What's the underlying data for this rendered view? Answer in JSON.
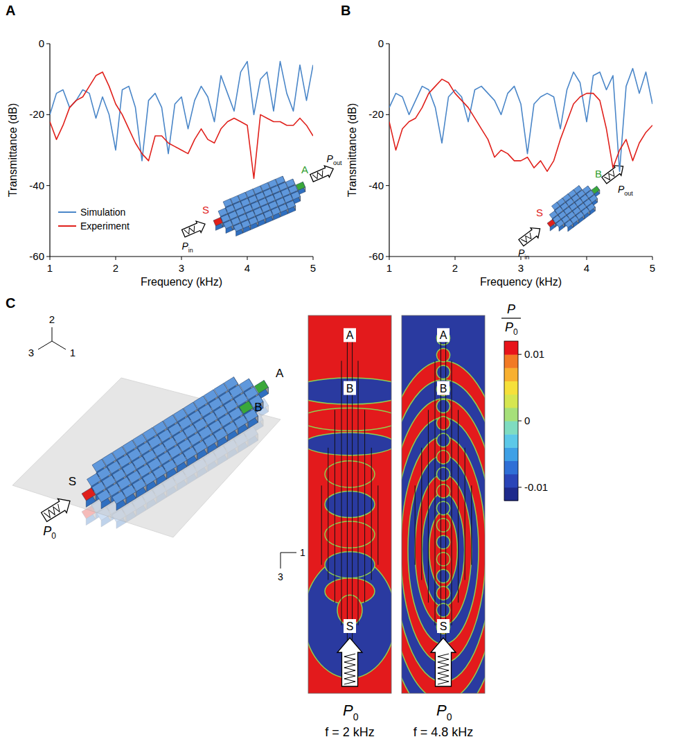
{
  "panel_labels": [
    "A",
    "B",
    "C"
  ],
  "chart_data": [
    {
      "type": "line",
      "x_label": "Frequency (kHz)",
      "y_label": "Transmittance (dB)",
      "xlim": [
        1,
        5
      ],
      "ylim": [
        -60,
        0
      ],
      "xticks": [
        1,
        2,
        3,
        4,
        5
      ],
      "yticks": [
        -60,
        -40,
        -20,
        0
      ],
      "grid": false,
      "legend": "lower left",
      "x": [
        1,
        1.1,
        1.2,
        1.3,
        1.4,
        1.5,
        1.6,
        1.7,
        1.8,
        1.9,
        2,
        2.1,
        2.2,
        2.3,
        2.4,
        2.5,
        2.6,
        2.7,
        2.8,
        2.9,
        3,
        3.1,
        3.2,
        3.3,
        3.4,
        3.5,
        3.6,
        3.7,
        3.8,
        3.9,
        4,
        4.1,
        4.2,
        4.3,
        4.4,
        4.5,
        4.6,
        4.7,
        4.8,
        4.9,
        5
      ],
      "series": [
        {
          "name": "Simulation",
          "color": "#4a86c8",
          "values": [
            -20,
            -14,
            -13,
            -18,
            -16,
            -13,
            -14,
            -21,
            -15,
            -20,
            -30,
            -13,
            -12,
            -18,
            -33,
            -16,
            -14,
            -18,
            -31,
            -17,
            -15,
            -24,
            -16,
            -12,
            -15,
            -22,
            -9,
            -14,
            -19,
            -8,
            -5,
            -20,
            -10,
            -8,
            -19,
            -5,
            -14,
            -19,
            -6,
            -16,
            -6
          ]
        },
        {
          "name": "Experiment",
          "color": "#e0201b",
          "values": [
            -22,
            -27,
            -23,
            -18,
            -16,
            -15,
            -12,
            -9,
            -8,
            -12,
            -17,
            -20,
            -24,
            -28,
            -31,
            -33,
            -26,
            -26,
            -28,
            -29,
            -30,
            -31,
            -27,
            -24,
            -27,
            -28,
            -24,
            -22,
            -21,
            -22,
            -23,
            -38,
            -20,
            -21,
            -22,
            -22,
            -23,
            -23,
            -21,
            -23,
            -26
          ]
        }
      ],
      "annotations": {
        "source": "S",
        "probe": "A",
        "p_in": {
          "text": "P",
          "sub": "in"
        },
        "p_out": {
          "text": "P",
          "sub": "out"
        }
      }
    },
    {
      "type": "line",
      "x_label": "Frequency (kHz)",
      "y_label": "Transmittance (dB)",
      "xlim": [
        1,
        5
      ],
      "ylim": [
        -60,
        0
      ],
      "xticks": [
        1,
        2,
        3,
        4,
        5
      ],
      "yticks": [
        -60,
        -40,
        -20,
        0
      ],
      "grid": false,
      "x": [
        1,
        1.1,
        1.2,
        1.3,
        1.4,
        1.5,
        1.6,
        1.7,
        1.8,
        1.9,
        2,
        2.1,
        2.2,
        2.3,
        2.4,
        2.5,
        2.6,
        2.7,
        2.8,
        2.9,
        3,
        3.1,
        3.2,
        3.3,
        3.4,
        3.5,
        3.6,
        3.7,
        3.8,
        3.9,
        4,
        4.1,
        4.2,
        4.3,
        4.4,
        4.5,
        4.6,
        4.7,
        4.8,
        4.9,
        5
      ],
      "series": [
        {
          "name": "Simulation",
          "color": "#4a86c8",
          "values": [
            -18,
            -14,
            -15,
            -20,
            -16,
            -12,
            -13,
            -18,
            -28,
            -15,
            -13,
            -15,
            -22,
            -13,
            -12,
            -14,
            -16,
            -20,
            -14,
            -12,
            -17,
            -31,
            -17,
            -15,
            -14,
            -15,
            -24,
            -13,
            -8,
            -11,
            -22,
            -9,
            -8,
            -13,
            -9,
            -36,
            -12,
            -7,
            -14,
            -8,
            -17
          ]
        },
        {
          "name": "Experiment",
          "color": "#e0201b",
          "values": [
            -22,
            -30,
            -24,
            -22,
            -21,
            -18,
            -14,
            -12,
            -10,
            -11,
            -14,
            -16,
            -18,
            -21,
            -24,
            -27,
            -32,
            -30,
            -31,
            -33,
            -33,
            -32,
            -35,
            -33,
            -36,
            -33,
            -27,
            -22,
            -17,
            -15,
            -14,
            -14,
            -16,
            -24,
            -35,
            -30,
            -27,
            -33,
            -28,
            -25,
            -23
          ]
        }
      ],
      "annotations": {
        "source": "S",
        "probe": "B",
        "p_in": {
          "text": "P",
          "sub": "in"
        },
        "p_out": {
          "text": "P",
          "sub": "out"
        }
      }
    }
  ],
  "panel_c": {
    "triad": [
      "2",
      "3",
      "1"
    ],
    "plane_axes": [
      "1",
      "3"
    ],
    "points": {
      "source": "S",
      "probe_a": "A",
      "probe_b": "B"
    },
    "source_pressure": {
      "text": "P",
      "sub": "0"
    },
    "maps": [
      {
        "frequency": "f = 2 kHz"
      },
      {
        "frequency": "f = 4.8 kHz"
      }
    ],
    "colorbar": {
      "label": {
        "numerator": "P",
        "denominator": {
          "text": "P",
          "sub": "0"
        }
      },
      "range": [
        -0.012,
        0.012
      ],
      "ticks": [
        0.01,
        0,
        -0.01
      ],
      "colors": [
        "#1e2a8c",
        "#2a45b8",
        "#2f6fd6",
        "#3ea0e6",
        "#5cc8e8",
        "#7fdcc0",
        "#a6e07a",
        "#d6e650",
        "#f6e03a",
        "#f8b030",
        "#f27a25",
        "#e8141b"
      ]
    }
  }
}
